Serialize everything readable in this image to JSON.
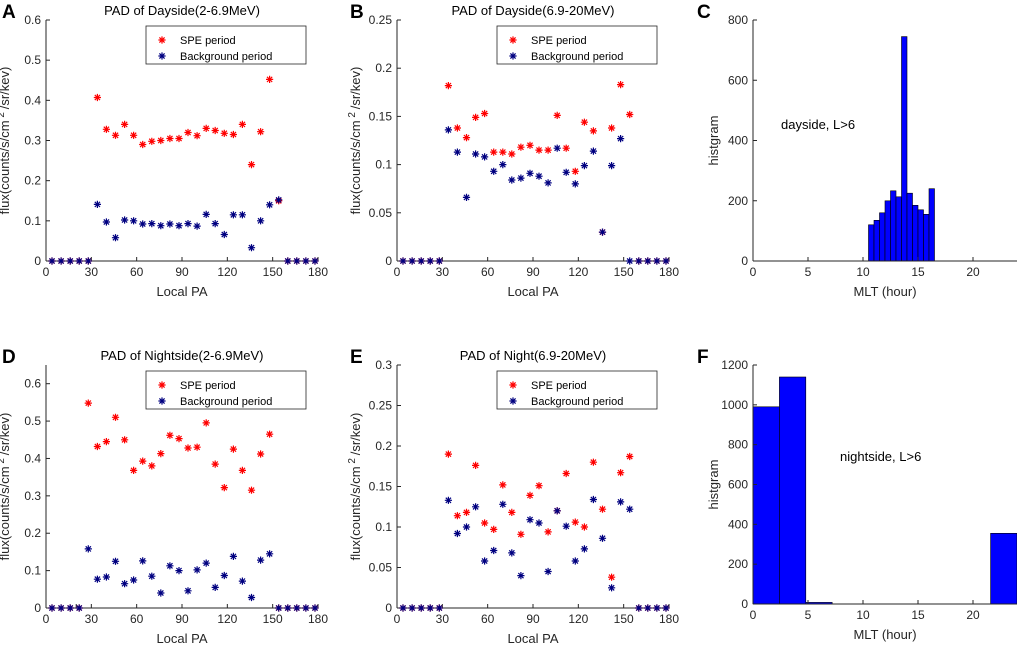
{
  "chart_data": [
    {
      "panel": "A",
      "type": "scatter",
      "title": "PAD of Dayside(2-6.9MeV)",
      "xlabel": "Local PA",
      "ylabel": "flux(counts/s/cm 2 /sr/kev)",
      "ylabel_parts": [
        "flux(counts/s/cm",
        "2",
        "/sr/kev)"
      ],
      "xlim": [
        0,
        180
      ],
      "ylim": [
        0,
        0.6
      ],
      "xticks": [
        0,
        30,
        60,
        90,
        120,
        150,
        180
      ],
      "xtick_labels": [
        "0",
        "30",
        "60",
        "90",
        "120",
        "150",
        "180"
      ],
      "yticks": [
        0,
        0.1,
        0.2,
        0.3,
        0.4,
        0.5,
        0.6
      ],
      "ytick_labels": [
        "0",
        "0.1",
        "0.2",
        "0.3",
        "0.4",
        "0.5",
        "0.6"
      ],
      "legend": "top-right",
      "series": [
        {
          "name": "SPE period",
          "color": "#ff0000",
          "x": [
            4,
            10,
            16,
            22,
            28,
            34,
            40,
            46,
            52,
            58,
            64,
            70,
            76,
            82,
            88,
            94,
            100,
            106,
            112,
            118,
            124,
            130,
            136,
            142,
            148,
            154,
            160,
            166,
            172,
            178
          ],
          "y": [
            0,
            0,
            0,
            0,
            0,
            0.407,
            0.328,
            0.313,
            0.34,
            0.313,
            0.29,
            0.298,
            0.3,
            0.305,
            0.305,
            0.32,
            0.312,
            0.33,
            0.325,
            0.318,
            0.315,
            0.34,
            0.24,
            0.322,
            0.452,
            0.15,
            0,
            0,
            0,
            0
          ]
        },
        {
          "name": "Background period",
          "color": "#000080",
          "x": [
            4,
            10,
            16,
            22,
            28,
            34,
            40,
            46,
            52,
            58,
            64,
            70,
            76,
            82,
            88,
            94,
            100,
            106,
            112,
            118,
            124,
            130,
            136,
            142,
            148,
            154,
            160,
            166,
            172,
            178
          ],
          "y": [
            0,
            0,
            0,
            0,
            0,
            0.141,
            0.097,
            0.058,
            0.102,
            0.1,
            0.092,
            0.093,
            0.088,
            0.092,
            0.088,
            0.093,
            0.087,
            0.116,
            0.093,
            0.066,
            0.115,
            0.115,
            0.033,
            0.1,
            0.14,
            0.152,
            0,
            0,
            0,
            0
          ]
        }
      ]
    },
    {
      "panel": "B",
      "type": "scatter",
      "title": "PAD of Dayside(6.9-20MeV)",
      "xlabel": "Local PA",
      "ylabel": "flux(counts/s/cm 2 /sr/kev)",
      "ylabel_parts": [
        "flux(counts/s/cm",
        "2",
        "/sr/kev)"
      ],
      "xlim": [
        0,
        180
      ],
      "ylim": [
        0,
        0.25
      ],
      "xticks": [
        0,
        30,
        60,
        90,
        120,
        150,
        180
      ],
      "xtick_labels": [
        "0",
        "30",
        "60",
        "90",
        "120",
        "150",
        "180"
      ],
      "yticks": [
        0,
        0.05,
        0.1,
        0.15,
        0.2,
        0.25
      ],
      "ytick_labels": [
        "0",
        "0.05",
        "0.1",
        "0.15",
        "0.2",
        "0.25"
      ],
      "legend": "top-right",
      "series": [
        {
          "name": "SPE period",
          "color": "#ff0000",
          "x": [
            4,
            10,
            16,
            22,
            28,
            34,
            40,
            46,
            52,
            58,
            64,
            70,
            76,
            82,
            88,
            94,
            100,
            106,
            112,
            118,
            124,
            130,
            136,
            142,
            148,
            154,
            160,
            166,
            172,
            178
          ],
          "y": [
            0,
            0,
            0,
            0,
            0,
            0.182,
            0.138,
            0.128,
            0.149,
            0.153,
            0.113,
            0.113,
            0.111,
            0.118,
            0.12,
            0.115,
            0.115,
            0.151,
            0.117,
            0.093,
            0.144,
            0.135,
            0.03,
            0.138,
            0.183,
            0.152,
            0,
            0,
            0,
            0
          ]
        },
        {
          "name": "Background period",
          "color": "#000080",
          "x": [
            4,
            10,
            16,
            22,
            28,
            34,
            40,
            46,
            52,
            58,
            64,
            70,
            76,
            82,
            88,
            94,
            100,
            106,
            112,
            118,
            124,
            130,
            136,
            142,
            148,
            154,
            160,
            166,
            172,
            178
          ],
          "y": [
            0,
            0,
            0,
            0,
            0,
            0.136,
            0.113,
            0.066,
            0.111,
            0.108,
            0.093,
            0.1,
            0.084,
            0.086,
            0.091,
            0.088,
            0.081,
            0.117,
            0.092,
            0.08,
            0.099,
            0.114,
            0.03,
            0.099,
            0.127,
            0,
            0,
            0,
            0,
            0
          ]
        }
      ]
    },
    {
      "panel": "C",
      "type": "bar",
      "title": "",
      "xlabel": "MLT (hour)",
      "ylabel": "histgram",
      "annotation": "dayside, L>6",
      "bar_width": 0.5,
      "bar_color": "#0000ff",
      "x": [
        10.75,
        11.25,
        11.75,
        12.25,
        12.75,
        13.25,
        13.75,
        14.25,
        14.75,
        15.25,
        15.75,
        16.25
      ],
      "values": [
        120,
        135,
        160,
        200,
        233,
        213,
        745,
        225,
        185,
        170,
        155,
        240
      ],
      "xlim": [
        0,
        24
      ],
      "ylim": [
        0,
        800
      ],
      "xticks": [
        0,
        5,
        10,
        15,
        20
      ],
      "xtick_labels": [
        "0",
        "5",
        "10",
        "15",
        "20"
      ],
      "yticks": [
        0,
        200,
        400,
        600,
        800
      ],
      "ytick_labels": [
        "0",
        "200",
        "400",
        "600",
        "800"
      ]
    },
    {
      "panel": "D",
      "type": "scatter",
      "title": "PAD of Nightside(2-6.9MeV)",
      "xlabel": "Local PA",
      "ylabel": "flux(counts/s/cm 2 /sr/kev)",
      "ylabel_parts": [
        "flux(counts/s/cm",
        "2",
        "/sr/kev)"
      ],
      "xlim": [
        0,
        180
      ],
      "ylim": [
        0,
        0.65
      ],
      "xticks": [
        0,
        20,
        30,
        60,
        90,
        120,
        150,
        180
      ],
      "xtick_labels": [
        "0",
        "",
        "30",
        "60",
        "90",
        "120",
        "150",
        "180"
      ],
      "yticks": [
        0,
        0.1,
        0.2,
        0.3,
        0.4,
        0.5,
        0.6
      ],
      "ytick_labels": [
        "0",
        "0.1",
        "0.2",
        "0.3",
        "0.4",
        "0.5",
        "0.6"
      ],
      "legend": "top-right",
      "series": [
        {
          "name": "SPE period",
          "color": "#ff0000",
          "x": [
            4,
            10,
            16,
            22,
            28,
            34,
            40,
            46,
            52,
            58,
            64,
            70,
            76,
            82,
            88,
            94,
            100,
            106,
            112,
            118,
            124,
            130,
            136,
            142,
            148,
            154,
            160,
            166,
            172,
            178
          ],
          "y": [
            0,
            0,
            0,
            0,
            0.548,
            0.432,
            0.445,
            0.51,
            0.45,
            0.368,
            0.393,
            0.38,
            0.413,
            0.462,
            0.453,
            0.428,
            0.43,
            0.495,
            0.385,
            0.322,
            0.425,
            0.368,
            0.315,
            0.412,
            0.465,
            0,
            0,
            0,
            0,
            0
          ]
        },
        {
          "name": "Background period",
          "color": "#000080",
          "x": [
            4,
            10,
            16,
            22,
            28,
            34,
            40,
            46,
            52,
            58,
            64,
            70,
            76,
            82,
            88,
            94,
            100,
            106,
            112,
            118,
            124,
            130,
            136,
            142,
            148,
            154,
            160,
            166,
            172,
            178
          ],
          "y": [
            0,
            0,
            0,
            0,
            0.158,
            0.077,
            0.083,
            0.125,
            0.065,
            0.075,
            0.126,
            0.085,
            0.04,
            0.113,
            0.1,
            0.046,
            0.102,
            0.12,
            0.055,
            0.087,
            0.138,
            0.072,
            0.028,
            0.128,
            0.145,
            0,
            0,
            0,
            0,
            0
          ]
        }
      ]
    },
    {
      "panel": "E",
      "type": "scatter",
      "title": "PAD of Night(6.9-20MeV)",
      "xlabel": "Local PA",
      "ylabel": "flux(counts/s/cm 2 /sr/kev)",
      "ylabel_parts": [
        "flux(counts/s/cm",
        "2",
        "/sr/kev)"
      ],
      "xlim": [
        0,
        180
      ],
      "ylim": [
        0,
        0.3
      ],
      "xticks": [
        0,
        30,
        60,
        90,
        120,
        150,
        180
      ],
      "xtick_labels": [
        "0",
        "30",
        "60",
        "90",
        "120",
        "150",
        "180"
      ],
      "yticks": [
        0,
        0.05,
        0.1,
        0.15,
        0.2,
        0.25,
        0.3
      ],
      "ytick_labels": [
        "0",
        "0.05",
        "0.1",
        "0.15",
        "0.2",
        "0.25",
        "0.3"
      ],
      "legend": "top-right",
      "series": [
        {
          "name": "SPE period",
          "color": "#ff0000",
          "x": [
            4,
            10,
            16,
            22,
            28,
            34,
            40,
            46,
            52,
            58,
            64,
            70,
            76,
            82,
            88,
            94,
            100,
            106,
            112,
            118,
            124,
            130,
            136,
            142,
            148,
            154,
            160,
            166,
            172,
            178
          ],
          "y": [
            0,
            0,
            0,
            0,
            0,
            0.19,
            0.114,
            0.118,
            0.176,
            0.105,
            0.097,
            0.152,
            0.118,
            0.091,
            0.139,
            0.151,
            0.094,
            0.12,
            0.166,
            0.106,
            0.1,
            0.18,
            0.122,
            0.038,
            0.167,
            0.187,
            0,
            0,
            0,
            0
          ]
        },
        {
          "name": "Background period",
          "color": "#000080",
          "x": [
            4,
            10,
            16,
            22,
            28,
            34,
            40,
            46,
            52,
            58,
            64,
            70,
            76,
            82,
            88,
            94,
            100,
            106,
            112,
            118,
            124,
            130,
            136,
            142,
            148,
            154,
            160,
            166,
            172,
            178
          ],
          "y": [
            0,
            0,
            0,
            0,
            0,
            0.133,
            0.092,
            0.1,
            0.125,
            0.058,
            0.071,
            0.128,
            0.068,
            0.04,
            0.109,
            0.105,
            0.045,
            0.12,
            0.101,
            0.058,
            0.073,
            0.134,
            0.086,
            0.025,
            0.131,
            0.122,
            0,
            0,
            0,
            0
          ]
        }
      ]
    },
    {
      "panel": "F",
      "type": "bar",
      "title": "",
      "xlabel": "MLT (hour)",
      "ylabel": "histgram",
      "annotation": "nightside, L>6",
      "bar_width": 2.4,
      "bar_color": "#0000ff",
      "x": [
        1.2,
        3.6,
        6.0,
        22.8
      ],
      "values": [
        990,
        1140,
        8,
        355
      ],
      "xlim": [
        0,
        24
      ],
      "ylim": [
        0,
        1200
      ],
      "xticks": [
        0,
        5,
        10,
        15,
        20
      ],
      "xtick_labels": [
        "0",
        "5",
        "10",
        "15",
        "20"
      ],
      "yticks": [
        0,
        200,
        400,
        600,
        800,
        1000,
        1200
      ],
      "ytick_labels": [
        "0",
        "200",
        "400",
        "600",
        "800",
        "1000",
        "1200"
      ]
    }
  ]
}
